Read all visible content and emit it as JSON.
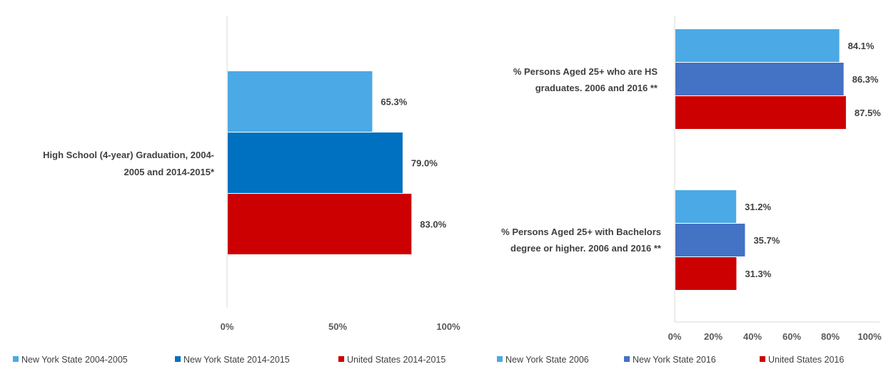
{
  "chart_data": [
    {
      "type": "bar",
      "orientation": "horizontal",
      "categories": [
        "High School (4-year) Graduation, 2004-2005 and 2014-2015*"
      ],
      "category_lines": [
        [
          "High School (4-year) Graduation, 2004-",
          "2005 and 2014-2015*"
        ]
      ],
      "series": [
        {
          "name": "New York State 2004-2005",
          "values": [
            65.3
          ],
          "labels": [
            "65.3%"
          ],
          "color": "#4BA9E5"
        },
        {
          "name": "New York State 2014-2015",
          "values": [
            79.0
          ],
          "labels": [
            "79.0%"
          ],
          "color": "#0070C0"
        },
        {
          "name": "United States 2014-2015",
          "values": [
            83.0
          ],
          "labels": [
            "83.0%"
          ],
          "color": "#CC0000"
        }
      ],
      "xlim": [
        0,
        100
      ],
      "xticks": [
        "0%",
        "50%",
        "100%"
      ],
      "grid": false,
      "legend_position": "bottom"
    },
    {
      "type": "bar",
      "orientation": "horizontal",
      "categories": [
        "% Persons Aged 25+ who are HS graduates. 2006 and 2016 **",
        "% Persons Aged 25+ with Bachelors degree or higher. 2006 and 2016 **"
      ],
      "category_lines": [
        [
          "% Persons Aged 25+ who are HS",
          "graduates. 2006 and 2016 **"
        ],
        [
          "% Persons Aged 25+ with Bachelors",
          "degree or higher. 2006 and 2016 **"
        ]
      ],
      "series": [
        {
          "name": "New York State 2006",
          "values": [
            84.1,
            31.2
          ],
          "labels": [
            "84.1%",
            "31.2%"
          ],
          "color": "#4BA9E5"
        },
        {
          "name": "New York State 2016",
          "values": [
            86.3,
            35.7
          ],
          "labels": [
            "86.3%",
            "35.7%"
          ],
          "color": "#4472C4"
        },
        {
          "name": "United States 2016",
          "values": [
            87.5,
            31.3
          ],
          "labels": [
            "87.5%",
            "31.3%"
          ],
          "color": "#CC0000"
        }
      ],
      "xlim": [
        0,
        100
      ],
      "xticks": [
        "0%",
        "20%",
        "40%",
        "60%",
        "80%",
        "100%"
      ],
      "grid": false,
      "legend_position": "bottom"
    }
  ],
  "colors": {
    "axis_line": "#D9D9D9"
  }
}
